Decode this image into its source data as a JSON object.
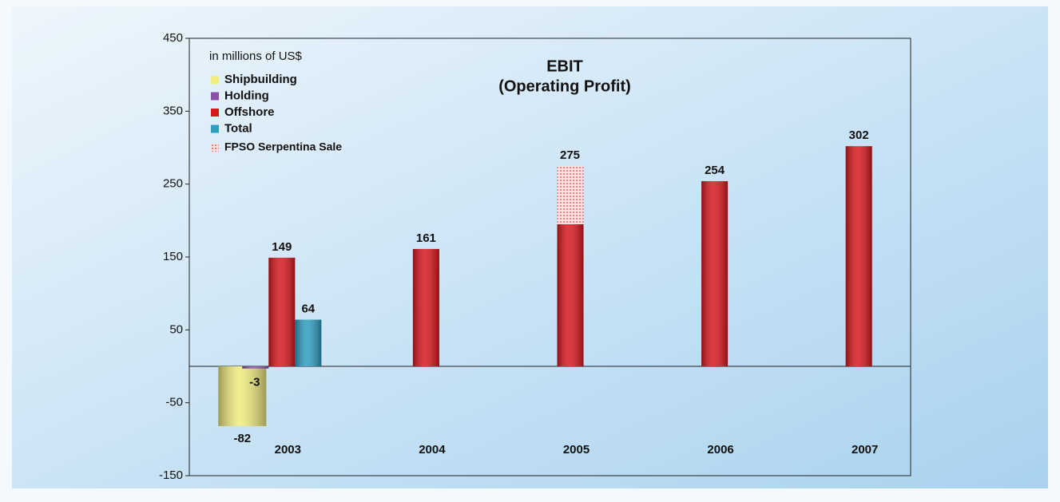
{
  "chart_data": {
    "type": "bar",
    "title": "EBIT",
    "subtitle": "(Operating Profit)",
    "unit_label": "in millions of US$",
    "categories": [
      "2003",
      "2004",
      "2005",
      "2006",
      "2007"
    ],
    "series": [
      {
        "name": "Shipbuilding",
        "color": "#f0ec80",
        "values": [
          -82,
          null,
          null,
          null,
          null
        ]
      },
      {
        "name": "Holding",
        "color": "#8a4fa8",
        "values": [
          -3,
          null,
          null,
          null,
          null
        ]
      },
      {
        "name": "Offshore",
        "color": "#d8181e",
        "values": [
          149,
          161,
          195,
          254,
          302
        ]
      },
      {
        "name": "Total",
        "color": "#2e9ec0",
        "values": [
          64,
          null,
          null,
          null,
          null
        ]
      },
      {
        "name": "FPSO Serpentina Sale",
        "color": "#e83a3a",
        "pattern": "dots",
        "stack": "Offshore",
        "values": [
          null,
          null,
          80,
          null,
          null
        ]
      }
    ],
    "stack_totals": [
      null,
      null,
      275,
      null,
      null
    ],
    "ylim": [
      -150,
      450
    ],
    "yticks": [
      -150,
      -50,
      50,
      150,
      250,
      350,
      450
    ],
    "grid": false,
    "legend": "upper left"
  }
}
